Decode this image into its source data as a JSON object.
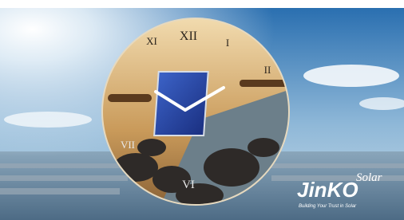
{
  "clock": {
    "numerals": [
      "XI",
      "XII",
      "I",
      "II",
      "VII",
      "VI"
    ]
  },
  "brand": {
    "name": "JinKO",
    "tag": "Solar",
    "slogan": "Building Your Trust in Solar"
  }
}
